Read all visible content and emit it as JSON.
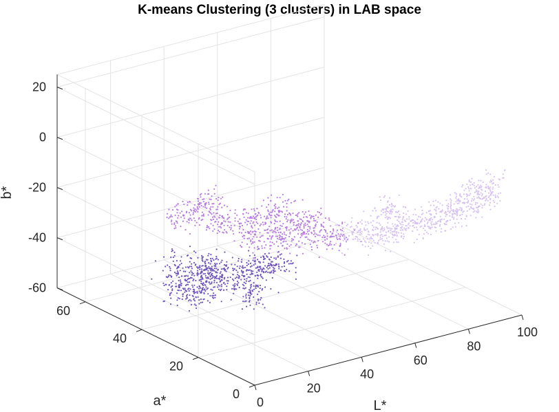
{
  "chart_data": {
    "type": "scatter",
    "projection": "3d",
    "title": "K-means Clustering (3 clusters) in LAB space",
    "xlabel": "L*",
    "ylabel": "a*",
    "zlabel": "b*",
    "xlim": [
      0,
      100
    ],
    "ylim": [
      0,
      70
    ],
    "zlim": [
      -60,
      25
    ],
    "xticks": [
      0,
      20,
      40,
      60,
      80,
      100
    ],
    "yticks": [
      0,
      20,
      40,
      60
    ],
    "zticks": [
      -60,
      -40,
      -20,
      0,
      20
    ],
    "xtick_labels": [
      "0",
      "20",
      "40",
      "60",
      "80",
      "100"
    ],
    "ytick_labels": [
      "0",
      "20",
      "40",
      "60"
    ],
    "ztick_labels": [
      "-60",
      "-40",
      "-20",
      "0",
      "20"
    ],
    "grid": true,
    "legend": "none",
    "series": [
      {
        "color": "#6f55bb",
        "points": [
          {
            "L": 22,
            "a": 38,
            "b": -46
          },
          {
            "L": 18,
            "a": 36,
            "b": -48
          },
          {
            "L": 28,
            "a": 38,
            "b": -45
          },
          {
            "L": 34,
            "a": 36,
            "b": -46
          },
          {
            "L": 26,
            "a": 42,
            "b": -43
          },
          {
            "L": 40,
            "a": 36,
            "b": -44
          },
          {
            "L": 20,
            "a": 46,
            "b": -44
          },
          {
            "L": 44,
            "a": 34,
            "b": -43
          },
          {
            "L": 30,
            "a": 30,
            "b": -48
          },
          {
            "L": 14,
            "a": 40,
            "b": -47
          }
        ]
      },
      {
        "color": "#b77ddf",
        "points": [
          {
            "L": 35,
            "a": 33,
            "b": -28
          },
          {
            "L": 30,
            "a": 40,
            "b": -26
          },
          {
            "L": 42,
            "a": 30,
            "b": -30
          },
          {
            "L": 38,
            "a": 36,
            "b": -24
          },
          {
            "L": 48,
            "a": 28,
            "b": -28
          },
          {
            "L": 22,
            "a": 46,
            "b": -24
          },
          {
            "L": 45,
            "a": 34,
            "b": -22
          },
          {
            "L": 52,
            "a": 30,
            "b": -26
          },
          {
            "L": 28,
            "a": 44,
            "b": -20
          },
          {
            "L": 55,
            "a": 25,
            "b": -30
          }
        ]
      },
      {
        "color": "#d6c3f1",
        "points": [
          {
            "L": 65,
            "a": 18,
            "b": -28
          },
          {
            "L": 60,
            "a": 22,
            "b": -28
          },
          {
            "L": 70,
            "a": 16,
            "b": -26
          },
          {
            "L": 75,
            "a": 14,
            "b": -24
          },
          {
            "L": 80,
            "a": 12,
            "b": -22
          },
          {
            "L": 85,
            "a": 10,
            "b": -20
          },
          {
            "L": 88,
            "a": 9,
            "b": -17
          },
          {
            "L": 92,
            "a": 8,
            "b": -14
          },
          {
            "L": 95,
            "a": 7,
            "b": -12
          },
          {
            "L": 72,
            "a": 20,
            "b": -22
          }
        ]
      }
    ]
  }
}
